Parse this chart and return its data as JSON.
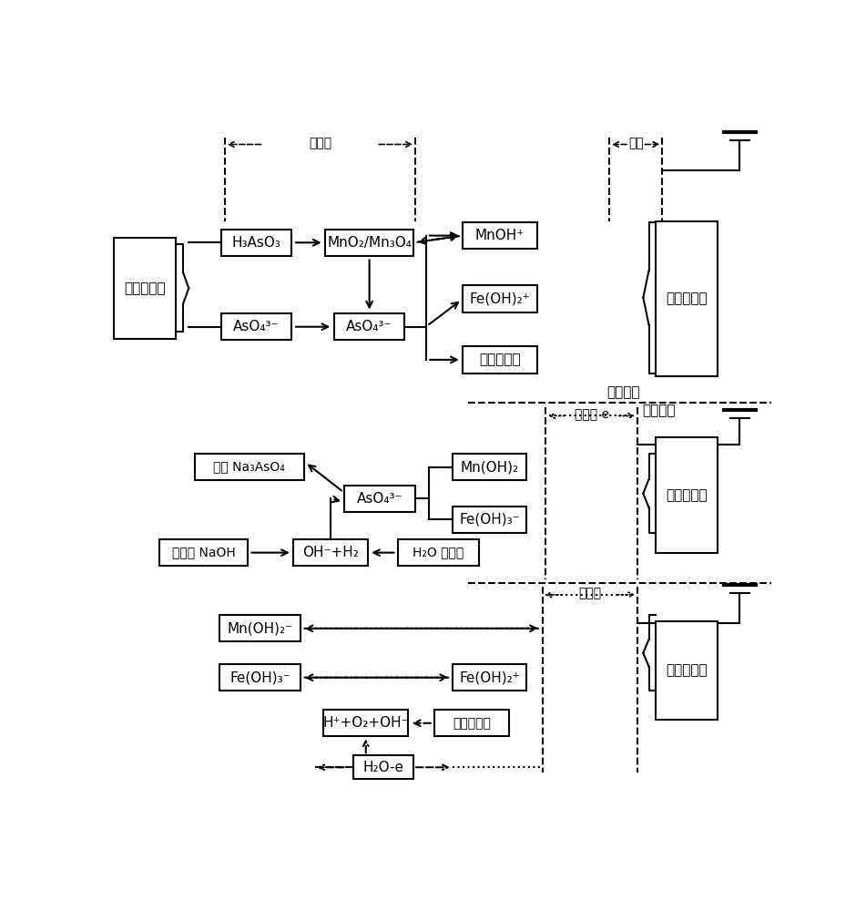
{
  "fig_width": 9.51,
  "fig_height": 10.0,
  "bg_color": "#ffffff",
  "s1": {
    "source": "含砷地下水",
    "h3aso3": "H₃AsO₃",
    "aso43_left": "AsO₄³⁻",
    "mno2": "MnO₂/Mn₃O₄",
    "aso43_mid": "AsO₄³⁻",
    "mnoh": "MnOH⁺",
    "feoh2": "Fe(OH)₂⁺",
    "double": "双电层束缚",
    "carbon": "碘纤维电极",
    "preox": "预氧化",
    "dielectric": "电容",
    "adsorb": "吸附阶段",
    "desorb": "脱附阶段"
  },
  "s2": {
    "waste": "废液 Na₃AsO₄",
    "aso43": "AsO₄³⁻",
    "mn_oh2": "Mn(OH)₂",
    "fe_oh3": "Fe(OH)₃⁻",
    "regen": "再生液 NaOH",
    "ohh2": "OH⁻+H₂",
    "h2o": "H₂O 电解析",
    "carbon": "碘纤维电极",
    "edesorb": "电脱附 e"
  },
  "s3": {
    "mn_oh2m": "Mn(OH)₂⁻",
    "fe_oh3m": "Fe(OH)₃⁻",
    "fe_oh2p": "Fe(OH)₂⁺",
    "hplusO2oh": "H⁺+O₂+OH⁻",
    "pulse": "电脉冲氧化",
    "h2oe": "H₂O-e",
    "carbon": "碘纤维电极",
    "precharge": "预充电"
  }
}
